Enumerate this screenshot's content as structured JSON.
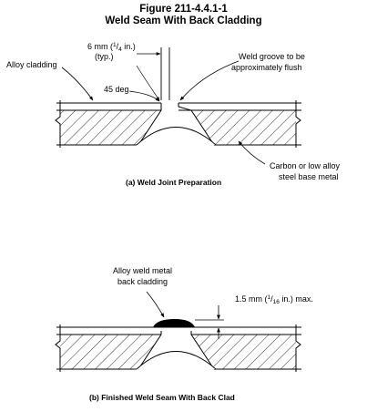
{
  "figure": {
    "number": "Figure 211-4.4.1-1",
    "title": "Weld Seam With Back Cladding"
  },
  "part_a": {
    "caption": "(a) Weld Joint Preparation",
    "gap_label": {
      "prefix": "6 mm (",
      "num": "1",
      "den": "4",
      "suffix": " in.)",
      "note": "(typ.)"
    },
    "angle_label": "45 deg",
    "alloy_cladding_label": "Alloy cladding",
    "weld_groove_label": [
      "Weld groove to be",
      "approximately flush"
    ],
    "base_metal_label": [
      "Carbon or low alloy",
      "steel base metal"
    ]
  },
  "part_b": {
    "caption": "(b) Finished Weld Seam With Back Clad",
    "back_clad_label": [
      "Alloy weld metal",
      "back cladding"
    ],
    "max_label": {
      "prefix": "1.5 mm (",
      "num": "1",
      "den": "16",
      "suffix": " in.) max."
    }
  }
}
